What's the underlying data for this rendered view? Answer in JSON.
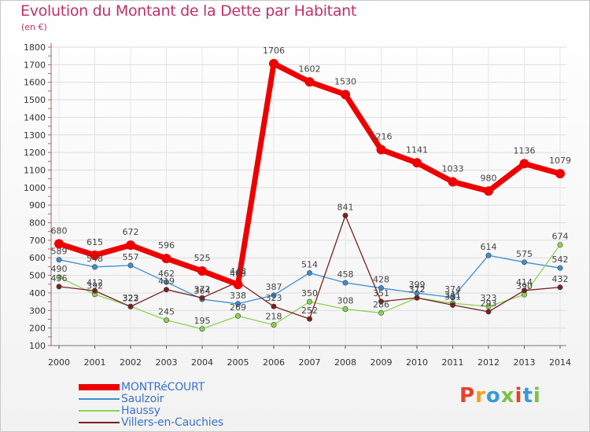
{
  "title": "Evolution du Montant de la Dette par Habitant",
  "unit": "(en €)",
  "logo": {
    "text": "Proxiti",
    "colors": [
      "#e8402a",
      "#f0a020",
      "#3a9ad8",
      "#7bc243",
      "#e8402a",
      "#3a9ad8",
      "#7bc243"
    ]
  },
  "chart_data": {
    "type": "line",
    "title": "Evolution du Montant de la Dette par Habitant",
    "ylabel": "(en €)",
    "xlabel": "",
    "x": [
      "2000",
      "2001",
      "2002",
      "2003",
      "2004",
      "2005",
      "2006",
      "2007",
      "2008",
      "2009",
      "2010",
      "2011",
      "2012",
      "2013",
      "2014"
    ],
    "ylim": [
      100,
      1800
    ],
    "yticks": [
      100,
      200,
      300,
      400,
      500,
      600,
      700,
      800,
      900,
      1000,
      1100,
      1200,
      1300,
      1400,
      1500,
      1600,
      1700,
      1800
    ],
    "grid": true,
    "legend_position": "bottom-left",
    "series": [
      {
        "name": "Saulzoir",
        "color": "#3a8fd0",
        "values": [
          589,
          548,
          557,
          462,
          364,
          338,
          387,
          514,
          458,
          428,
          399,
          374,
          614,
          575,
          542
        ]
      },
      {
        "name": "Haussy",
        "color": "#8ad452",
        "values": [
          490,
          392,
          323,
          245,
          195,
          269,
          218,
          350,
          308,
          286,
          372,
          341,
          323,
          390,
          674
        ]
      },
      {
        "name": "Villers-en-Cauchies",
        "color": "#7a2020",
        "values": [
          436,
          412,
          322,
          419,
          372,
          463,
          323,
          252,
          841,
          351,
          372,
          331,
          293,
          414,
          432
        ]
      },
      {
        "name": "MONTRéCOURT",
        "color": "#ee0000",
        "values": [
          680,
          615,
          672,
          596,
          525,
          448,
          1706,
          1602,
          1530,
          1216,
          1141,
          1033,
          980,
          1136,
          1079
        ]
      }
    ]
  },
  "legend": [
    {
      "name": "MONTRéCOURT",
      "color": "#ee0000"
    },
    {
      "name": "Saulzoir",
      "color": "#3a8fd0"
    },
    {
      "name": "Haussy",
      "color": "#8ad452"
    },
    {
      "name": "Villers-en-Cauchies",
      "color": "#7a2020"
    }
  ]
}
